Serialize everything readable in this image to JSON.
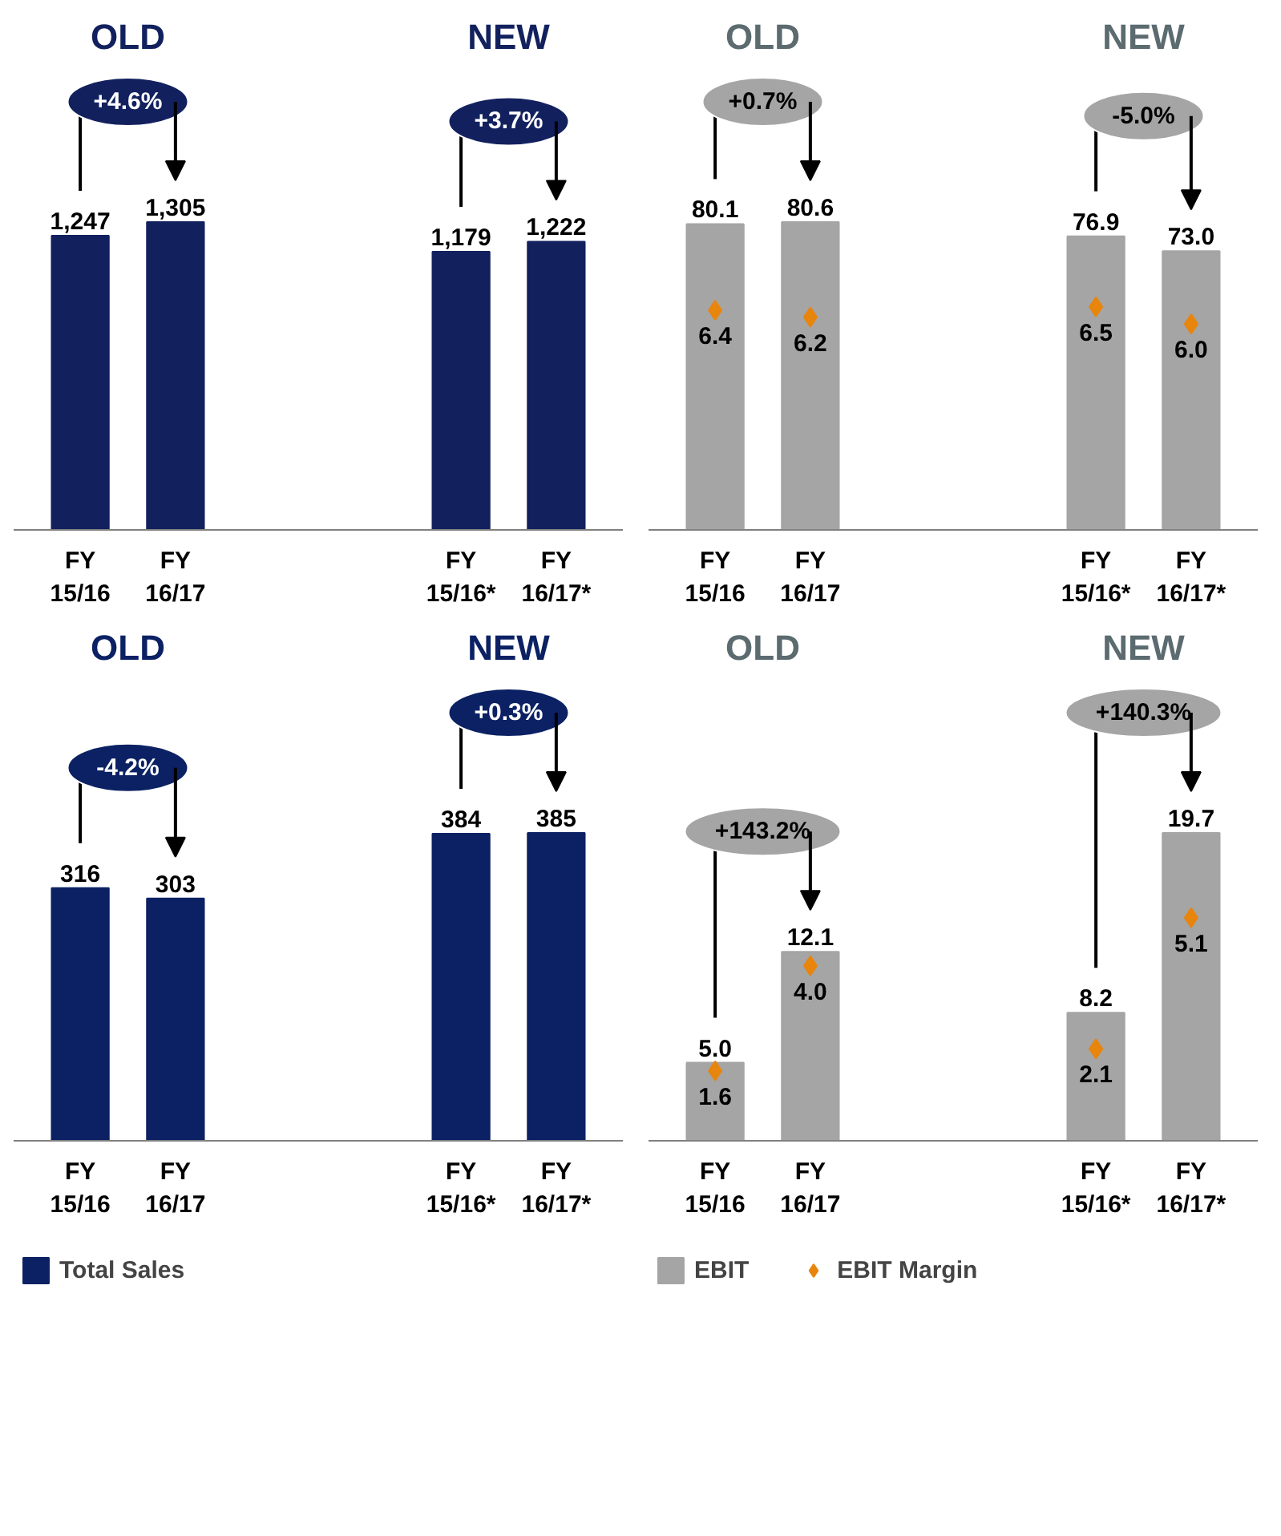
{
  "chart_data": [
    {
      "type": "bar",
      "categories": [
        "FY\n15/16",
        "FY\n16/17",
        null,
        null,
        "FY\n15/16*",
        "FY\n16/17*"
      ],
      "series": [
        {
          "color": "#12215e",
          "values": [
            1247,
            1305,
            null,
            null,
            1179,
            1222
          ],
          "value_labels": [
            "1,247",
            "1,305",
            null,
            null,
            "1,179",
            "1,222"
          ]
        }
      ],
      "tick_labels": "x",
      "annotations": [
        "OLD",
        "NEW",
        "+4.6%",
        "+3.7%"
      ]
    },
    {
      "type": "bar",
      "categories": [
        "FY\n15/16",
        "FY\n16/17",
        null,
        null,
        "FY\n15/16*",
        "FY\n16/17*"
      ],
      "series": [
        {
          "type": "bar",
          "color": "#a5a5a5",
          "values": [
            80.1,
            80.6,
            null,
            null,
            76.9,
            73.0
          ],
          "value_labels": [
            "80.1",
            "80.6",
            null,
            null,
            "76.9",
            "73.0"
          ]
        },
        {
          "type": "scatter",
          "axis": "y2",
          "color": "#e8850c",
          "values": [
            6.4,
            6.2,
            null,
            null,
            6.5,
            6.0
          ],
          "value_labels": [
            "6.4",
            "6.2",
            null,
            null,
            "6.5",
            "6.0"
          ]
        }
      ],
      "marker": "diamond",
      "tick_labels": "x",
      "annotations": [
        "OLD",
        "NEW",
        "+0.7%",
        "-5.0%"
      ]
    },
    {
      "type": "bar",
      "categories": [
        "FY\n15/16",
        "FY\n16/17",
        null,
        null,
        "FY\n15/16*",
        "FY\n16/17*"
      ],
      "series": [
        {
          "name": "Total Sales",
          "color": "#0b2163",
          "values": [
            316,
            303,
            null,
            null,
            384,
            385
          ],
          "value_labels": [
            "316",
            "303",
            null,
            null,
            "384",
            "385"
          ]
        }
      ],
      "tick_labels": "x",
      "legend": "bottom",
      "annotations": [
        "OLD",
        "NEW",
        "-4.2%",
        "+0.3%"
      ]
    },
    {
      "type": "bar",
      "categories": [
        "FY\n15/16",
        "FY\n16/17",
        null,
        null,
        "FY\n15/16*",
        "FY\n16/17*"
      ],
      "series": [
        {
          "type": "bar",
          "name": "EBIT",
          "color": "#a5a5a5",
          "values": [
            5.0,
            12.1,
            null,
            null,
            8.2,
            19.7
          ],
          "value_labels": [
            "5.0",
            "12.1",
            null,
            null,
            "8.2",
            "19.7"
          ]
        },
        {
          "type": "scatter",
          "name": "EBIT Margin",
          "axis": "y2",
          "color": "#e8850c",
          "values": [
            1.6,
            4.0,
            null,
            null,
            2.1,
            5.1
          ],
          "value_labels": [
            "1.6",
            "4.0",
            null,
            null,
            "2.1",
            "5.1"
          ]
        }
      ],
      "marker": "diamond",
      "tick_labels": "x",
      "legend": "bottom",
      "annotations": [
        "OLD",
        "NEW",
        "+143.2%",
        "+140.3%"
      ]
    }
  ]
}
